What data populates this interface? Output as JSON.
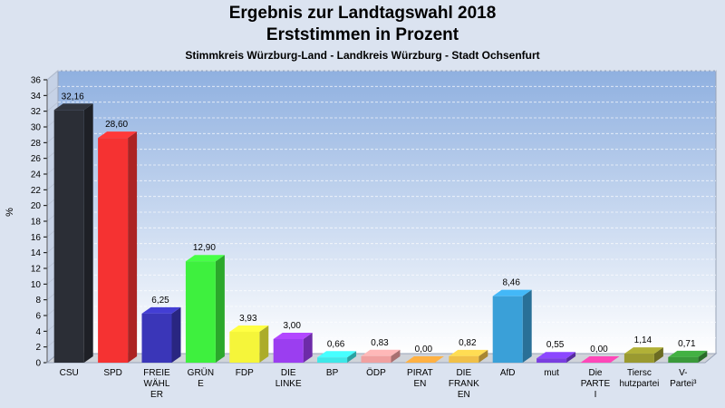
{
  "chart_data": {
    "type": "bar",
    "title": "Ergebnis zur Landtagswahl 2018",
    "subtitle": "Erststimmen in Prozent",
    "subtitle2": "Stimmkreis Würzburg-Land - Landkreis Würzburg - Stadt Ochsenfurt",
    "ylabel": "%",
    "xlabel": "",
    "ylim": [
      0,
      36
    ],
    "yticks": [
      0,
      2,
      4,
      6,
      8,
      10,
      12,
      14,
      16,
      18,
      20,
      22,
      24,
      26,
      28,
      30,
      32,
      34,
      36
    ],
    "grid": true,
    "legend": "none",
    "categories": [
      "CSU",
      "SPD",
      "FREIE WÄHLER",
      "GRÜNE",
      "FDP",
      "DIE LINKE",
      "BP",
      "ÖDP",
      "PIRATEN",
      "DIE FRANKEN",
      "AfD",
      "mut",
      "Die PARTEI",
      "Tierschutzpartei",
      "V-Partei³"
    ],
    "category_label_lines": [
      [
        "CSU"
      ],
      [
        "SPD"
      ],
      [
        "FREIE",
        "WÄHL",
        "ER"
      ],
      [
        "GRÜN",
        "E"
      ],
      [
        "FDP"
      ],
      [
        "DIE",
        "LINKE"
      ],
      [
        "BP"
      ],
      [
        "ÖDP"
      ],
      [
        "PIRAT",
        "EN"
      ],
      [
        "DIE",
        "FRANK",
        "EN"
      ],
      [
        "AfD"
      ],
      [
        "mut"
      ],
      [
        "Die",
        "PARTE",
        "I"
      ],
      [
        "Tiersc",
        "hutzpartei"
      ],
      [
        "V-",
        "Partei³"
      ]
    ],
    "values": [
      32.16,
      28.6,
      6.25,
      12.9,
      3.93,
      3.0,
      0.66,
      0.83,
      0.0,
      0.82,
      8.46,
      0.55,
      0.0,
      1.14,
      0.71
    ],
    "value_labels": [
      "32,16",
      "28,60",
      "6,25",
      "12,90",
      "3,93",
      "3,00",
      "0,66",
      "0,83",
      "0,00",
      "0,82",
      "8,46",
      "0,55",
      "0,00",
      "1,14",
      "0,71"
    ],
    "colors": [
      "#2b2e36",
      "#f53232",
      "#3a36b8",
      "#3ef03e",
      "#f5f53a",
      "#9b3ef0",
      "#3ee8e8",
      "#f0a0a0",
      "#f59a3a",
      "#f0c048",
      "#3aa0d8",
      "#7a3ee0",
      "#f03ea0",
      "#9a9a30",
      "#3a9a3a"
    ]
  },
  "colors": {
    "page_background": "#dbe3f0",
    "plot_top": "#8fb0e0",
    "plot_bottom": "#ffffff"
  }
}
